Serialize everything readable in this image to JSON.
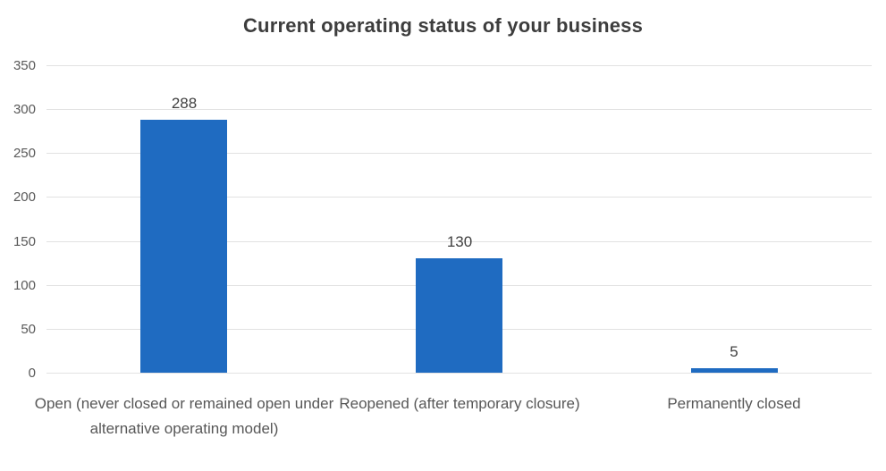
{
  "chart_data": {
    "type": "bar",
    "title": "Current operating status of your business",
    "categories": [
      "Open (never closed or remained open under alternative operating model)",
      "Reopened (after temporary closure)",
      "Permanently closed"
    ],
    "values": [
      288,
      130,
      5
    ],
    "data_labels": [
      "288",
      "130",
      "5"
    ],
    "xlabel": "",
    "ylabel": "",
    "ylim": [
      0,
      350
    ],
    "yticks": [
      0,
      50,
      100,
      150,
      200,
      250,
      300,
      350
    ],
    "grid": true,
    "legend": false
  },
  "colors": {
    "bar": "#1f6bc1",
    "gridline": "#e2e2e2",
    "title_text": "#3d3d3d",
    "tick_text": "#595959",
    "value_text": "#404040",
    "category_text": "#575757",
    "background": "#ffffff"
  }
}
